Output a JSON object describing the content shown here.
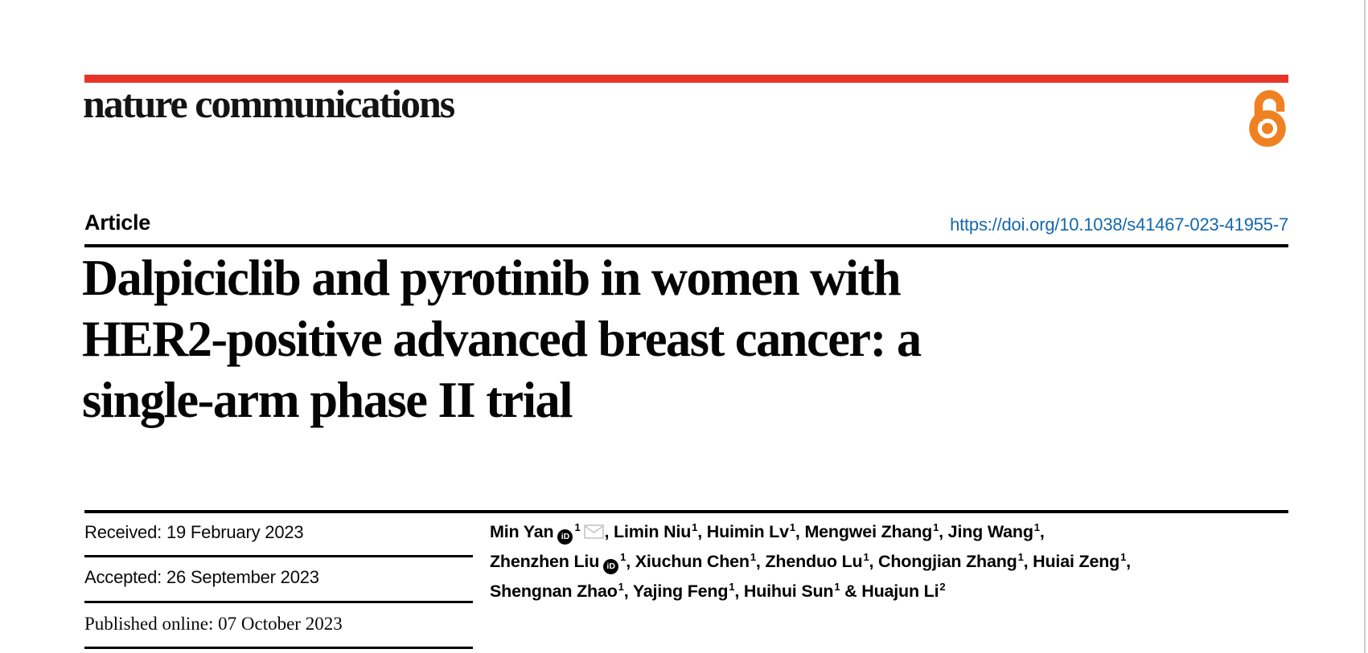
{
  "colors": {
    "bar_red": "#e63428",
    "link_blue": "#1467ac",
    "open_access_orange": "#f08121",
    "text_black": "#000000"
  },
  "masthead": {
    "journal_name": "nature communications",
    "open_access_icon": "open-access-lock-icon"
  },
  "article_header": {
    "type_label": "Article",
    "doi": "https://doi.org/10.1038/s41467-023-41955-7",
    "title_lines": [
      "Dalpiciclib and pyrotinib in women with",
      "HER2-positive advanced breast cancer: a",
      "single-arm phase II trial"
    ]
  },
  "timeline": {
    "rows": [
      {
        "label": "Received:",
        "value": "19 February 2023"
      },
      {
        "label": "Accepted:",
        "value": "26 September 2023"
      },
      {
        "label": "Published online:",
        "value": "07 October 2023"
      }
    ]
  },
  "authors": {
    "lines": [
      [
        {
          "text": "Min Yan"
        },
        {
          "icon": "orcid"
        },
        {
          "sup": "1"
        },
        {
          "icon": "email"
        },
        {
          "text": ", Limin Niu"
        },
        {
          "sup": "1"
        },
        {
          "text": ", Huimin Lv"
        },
        {
          "sup": "1"
        },
        {
          "text": ", Mengwei Zhang"
        },
        {
          "sup": "1"
        },
        {
          "text": ", Jing Wang"
        },
        {
          "sup": "1"
        },
        {
          "text": ","
        }
      ],
      [
        {
          "text": "Zhenzhen Liu"
        },
        {
          "icon": "orcid"
        },
        {
          "sup": "1"
        },
        {
          "text": ", Xiuchun Chen"
        },
        {
          "sup": "1"
        },
        {
          "text": ", Zhenduo Lu"
        },
        {
          "sup": "1"
        },
        {
          "text": ", Chongjian Zhang"
        },
        {
          "sup": "1"
        },
        {
          "text": ", Huiai Zeng"
        },
        {
          "sup": "1"
        },
        {
          "text": ","
        }
      ],
      [
        {
          "text": "Shengnan Zhao"
        },
        {
          "sup": "1"
        },
        {
          "text": ", Yajing Feng"
        },
        {
          "sup": "1"
        },
        {
          "text": ", Huihui Sun"
        },
        {
          "sup": "1"
        },
        {
          "text": " & Huajun Li"
        },
        {
          "sup": "2"
        }
      ]
    ],
    "orcid_icon_text": "iD"
  }
}
